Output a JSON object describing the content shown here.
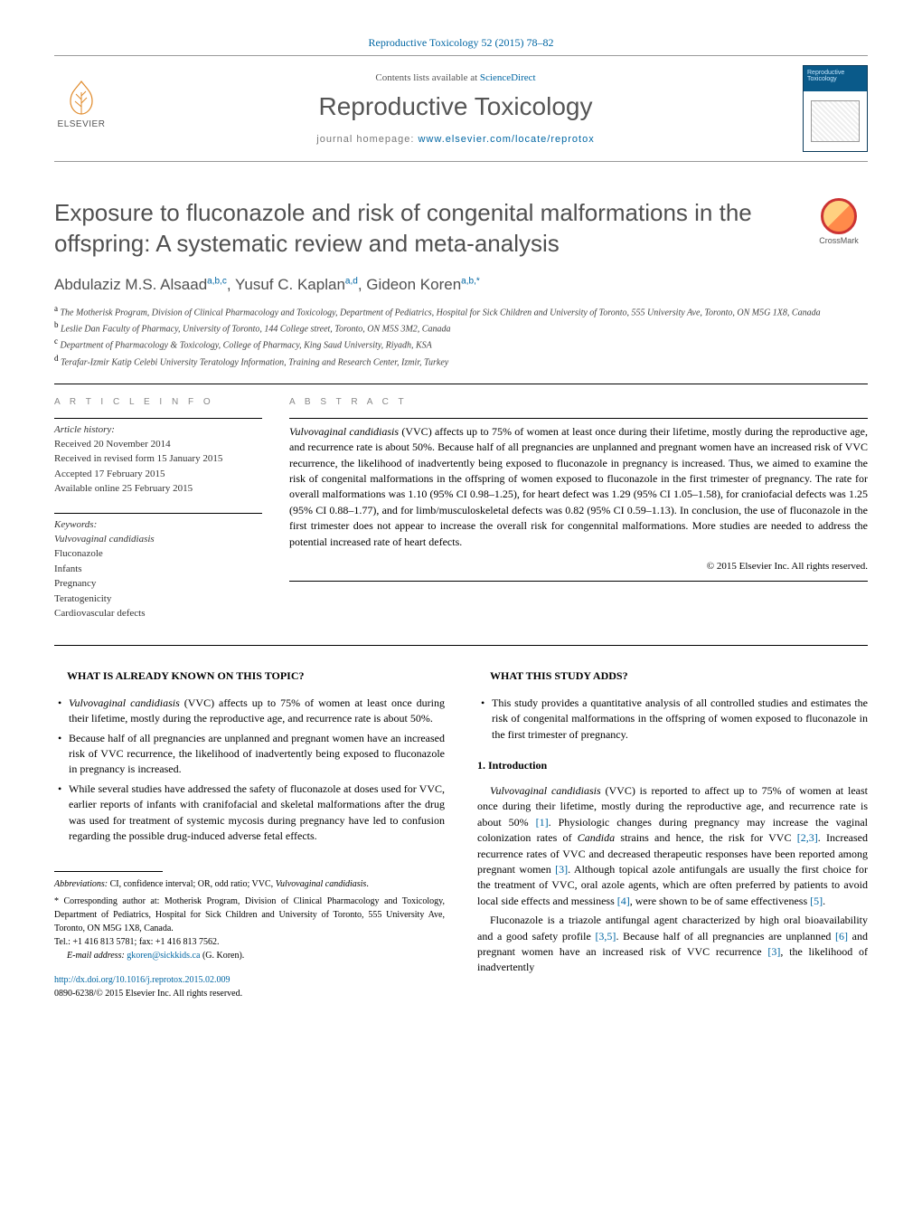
{
  "header": {
    "citation": "Reproductive Toxicology 52 (2015) 78–82",
    "contents_prefix": "Contents lists available at ",
    "contents_link": "ScienceDirect",
    "journal_title": "Reproductive Toxicology",
    "homepage_prefix": "journal homepage: ",
    "homepage_url": "www.elsevier.com/locate/reprotox",
    "publisher": "ELSEVIER",
    "cover_label": "Reproductive Toxicology"
  },
  "article": {
    "title": "Exposure to fluconazole and risk of congenital malformations in the offspring: A systematic review and meta-analysis",
    "crossmark_label": "CrossMark",
    "authors_html": "Abdulaziz M.S. Alsaad<sup>a,b,c</sup>, Yusuf C. Kaplan<sup>a,d</sup>, Gideon Koren<sup>a,b,*</sup>",
    "affiliations": [
      "a The Motherisk Program, Division of Clinical Pharmacology and Toxicology, Department of Pediatrics, Hospital for Sick Children and University of Toronto, 555 University Ave, Toronto, ON M5G 1X8, Canada",
      "b Leslie Dan Faculty of Pharmacy, University of Toronto, 144 College street, Toronto, ON M5S 3M2, Canada",
      "c Department of Pharmacology & Toxicology, College of Pharmacy, King Saud University, Riyadh, KSA",
      "d Terafar-Izmir Katip Celebi University Teratology Information, Training and Research Center, Izmir, Turkey"
    ]
  },
  "info": {
    "section_label": "a r t i c l e   i n f o",
    "history_label": "Article history:",
    "history": [
      "Received 20 November 2014",
      "Received in revised form 15 January 2015",
      "Accepted 17 February 2015",
      "Available online 25 February 2015"
    ],
    "keywords_label": "Keywords:",
    "keywords": [
      "Vulvovaginal candidiasis",
      "Fluconazole",
      "Infants",
      "Pregnancy",
      "Teratogenicity",
      "Cardiovascular defects"
    ]
  },
  "abstract": {
    "section_label": "a b s t r a c t",
    "text": "Vulvovaginal candidiasis (VVC) affects up to 75% of women at least once during their lifetime, mostly during the reproductive age, and recurrence rate is about 50%. Because half of all pregnancies are unplanned and pregnant women have an increased risk of VVC recurrence, the likelihood of inadvertently being exposed to fluconazole in pregnancy is increased. Thus, we aimed to examine the risk of congenital malformations in the offspring of women exposed to fluconazole in the first trimester of pregnancy. The rate for overall malformations was 1.10 (95% CI 0.98–1.25), for heart defect was 1.29 (95% CI 1.05–1.58), for craniofacial defects was 1.25 (95% CI 0.88–1.77), and for limb/musculoskeletal defects was 0.82 (95% CI 0.59–1.13). In conclusion, the use of fluconazole in the first trimester does not appear to increase the overall risk for congennital malformations. More studies are needed to address the potential increased rate of heart defects.",
    "copyright": "© 2015 Elsevier Inc. All rights reserved."
  },
  "known": {
    "heading": "WHAT IS ALREADY KNOWN ON THIS TOPIC?",
    "bullets": [
      "Vulvovaginal candidiasis (VVC) affects up to 75% of women at least once during their lifetime, mostly during the reproductive age, and recurrence rate is about 50%.",
      "Because half of all pregnancies are unplanned and pregnant women have an increased risk of VVC recurrence, the likelihood of inadvertently being exposed to fluconazole in pregnancy is increased.",
      "While several studies have addressed the safety of fluconazole at doses used for VVC, earlier reports of infants with cranifofacial and skeletal malformations after the drug was used for treatment of systemic mycosis during pregnancy have led to confusion regarding the possible drug-induced adverse fetal effects."
    ]
  },
  "adds": {
    "heading": "WHAT THIS STUDY ADDS?",
    "bullets": [
      "This study provides a quantitative analysis of all controlled studies and estimates the risk of congenital malformations in the offspring of women exposed to fluconazole in the first trimester of pregnancy."
    ]
  },
  "intro": {
    "heading": "1. Introduction",
    "p1": "Vulvovaginal candidiasis (VVC) is reported to affect up to 75% of women at least once during their lifetime, mostly during the reproductive age, and recurrence rate is about 50% [1]. Physiologic changes during pregnancy may increase the vaginal colonization rates of Candida strains and hence, the risk for VVC [2,3]. Increased recurrence rates of VVC and decreased therapeutic responses have been reported among pregnant women [3]. Although topical azole antifungals are usually the first choice for the treatment of VVC, oral azole agents, which are often preferred by patients to avoid local side effects and messiness [4], were shown to be of same effectiveness [5].",
    "p2": "Fluconazole is a triazole antifungal agent characterized by high oral bioavailability and a good safety profile [3,5]. Because half of all pregnancies are unplanned [6] and pregnant women have an increased risk of VVC recurrence [3], the likelihood of inadvertently"
  },
  "footnotes": {
    "abbrev_label": "Abbreviations:",
    "abbrev_text": " CI, confidence interval; OR, odd ratio; VVC, Vulvovaginal candidiasis.",
    "corr_label": "* Corresponding author at:",
    "corr_text": " Motherisk Program, Division of Clinical Pharmacology and Toxicology, Department of Pediatrics, Hospital for Sick Children and University of Toronto, 555 University Ave, Toronto, ON M5G 1X8, Canada.",
    "tel": "Tel.: +1 416 813 5781; fax: +1 416 813 7562.",
    "email_label": "E-mail address: ",
    "email": "gkoren@sickkids.ca",
    "email_who": " (G. Koren)."
  },
  "doi": {
    "url": "http://dx.doi.org/10.1016/j.reprotox.2015.02.009",
    "issn": "0890-6238/© 2015 Elsevier Inc. All rights reserved."
  },
  "colors": {
    "link": "#0066a3",
    "text_gray": "#505050",
    "rule": "#000000"
  }
}
